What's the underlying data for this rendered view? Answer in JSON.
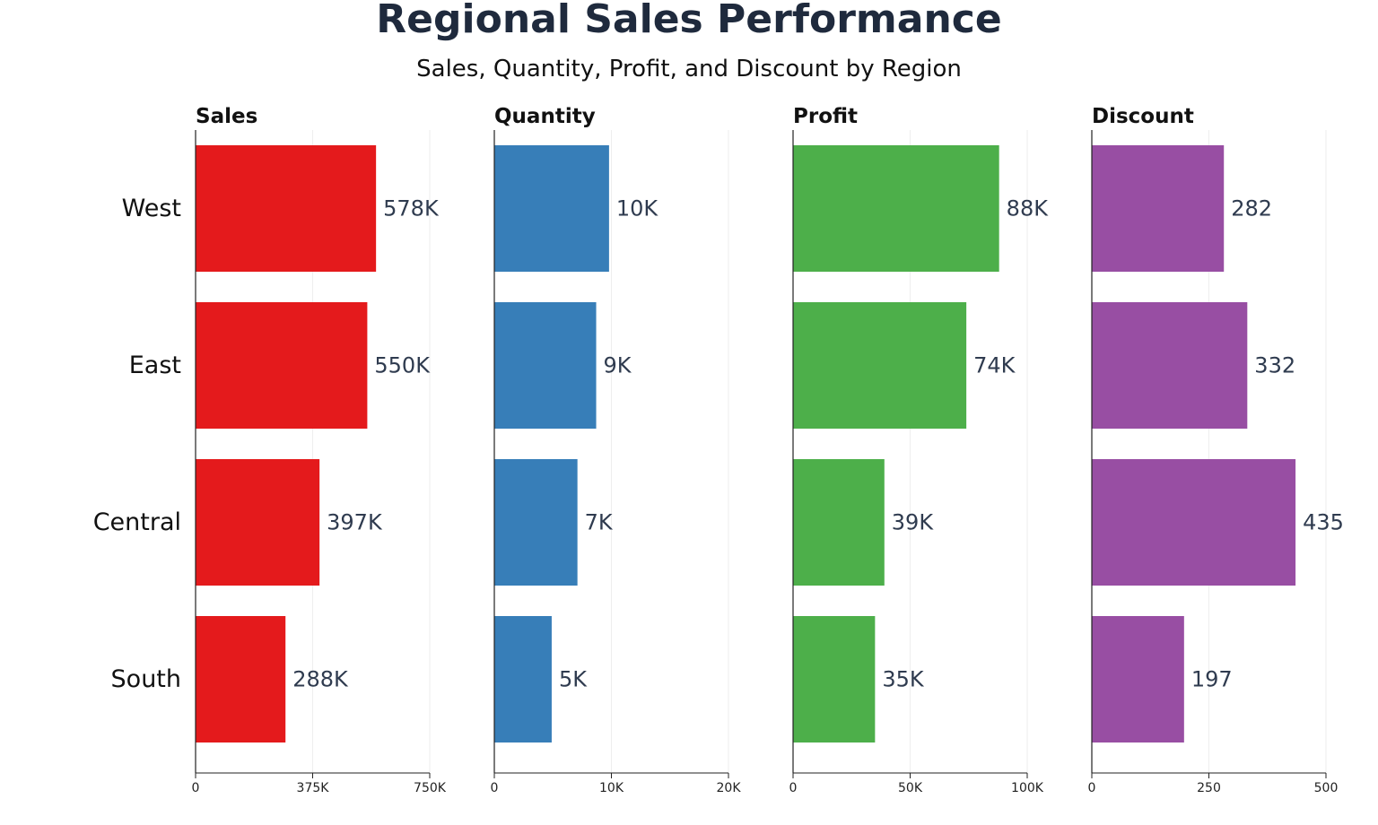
{
  "chart_data": {
    "type": "bar",
    "orientation": "horizontal",
    "title": "Regional Sales Performance",
    "subtitle": "Sales, Quantity, Profit, and Discount by Region",
    "categories": [
      "West",
      "East",
      "Central",
      "South"
    ],
    "grid": true,
    "panels": [
      {
        "name": "Sales",
        "color": "#e41a1c",
        "values": [
          578000,
          550000,
          397000,
          288000
        ],
        "labels": [
          "578K",
          "550K",
          "397K",
          "288K"
        ],
        "xlim": [
          0,
          750000
        ],
        "ticks": [
          0,
          375000,
          750000
        ],
        "tick_labels": [
          "0",
          "375K",
          "750K"
        ]
      },
      {
        "name": "Quantity",
        "color": "#377eb8",
        "values": [
          9800,
          8700,
          7100,
          4900
        ],
        "labels": [
          "10K",
          "9K",
          "7K",
          "5K"
        ],
        "xlim": [
          0,
          20000
        ],
        "ticks": [
          0,
          10000,
          20000
        ],
        "tick_labels": [
          "0",
          "10K",
          "20K"
        ]
      },
      {
        "name": "Profit",
        "color": "#4daf4a",
        "values": [
          88000,
          74000,
          39000,
          35000
        ],
        "labels": [
          "88K",
          "74K",
          "39K",
          "35K"
        ],
        "xlim": [
          0,
          100000
        ],
        "ticks": [
          0,
          50000,
          100000
        ],
        "tick_labels": [
          "0",
          "50K",
          "100K"
        ]
      },
      {
        "name": "Discount",
        "color": "#984ea3",
        "values": [
          282,
          332,
          435,
          197
        ],
        "labels": [
          "282",
          "332",
          "435",
          "197"
        ],
        "xlim": [
          0,
          500
        ],
        "ticks": [
          0,
          250,
          500
        ],
        "tick_labels": [
          "0",
          "250",
          "500"
        ]
      }
    ]
  }
}
